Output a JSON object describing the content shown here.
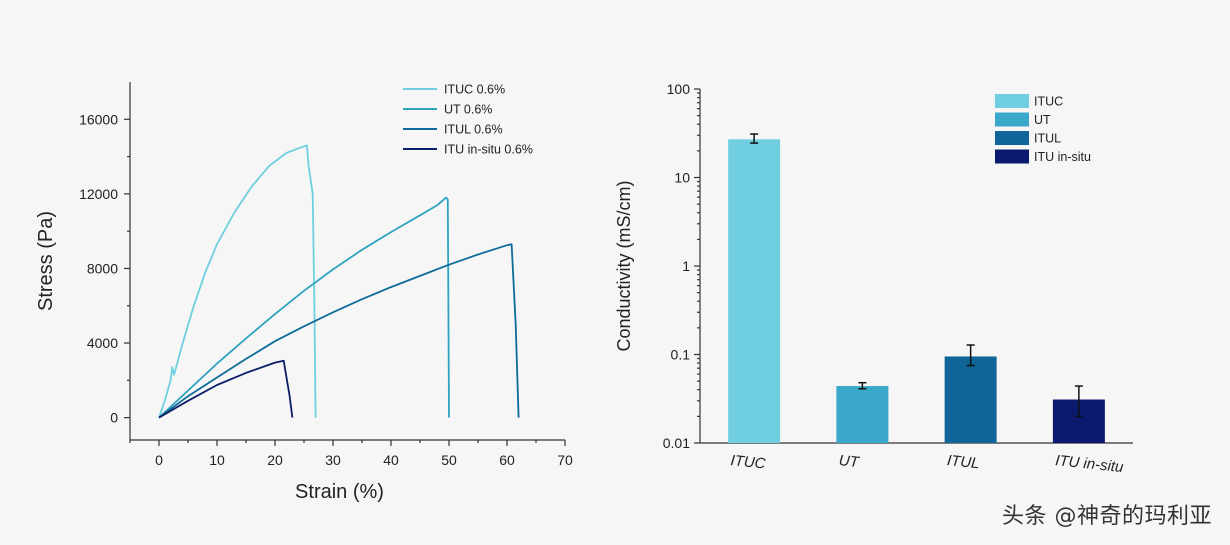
{
  "chart_data": [
    {
      "type": "line",
      "xlabel": "Strain (%)",
      "ylabel": "Stress (Pa)",
      "xlim": [
        -5,
        70
      ],
      "ylim": [
        -1200,
        18000
      ],
      "xticks": [
        0,
        10,
        20,
        30,
        40,
        50,
        60,
        70
      ],
      "yticks": [
        0,
        4000,
        8000,
        12000,
        16000
      ],
      "legend_position": "top-right",
      "series": [
        {
          "name": "ITUC 0.6%",
          "color": "#6fcfe0",
          "x": [
            0,
            1,
            2,
            2.3,
            2.6,
            4,
            6,
            8,
            10,
            13,
            16,
            19,
            22,
            24.5,
            25.5,
            25.8,
            26.5,
            26.8,
            27
          ],
          "y": [
            0,
            900,
            2000,
            2700,
            2300,
            3900,
            6000,
            7800,
            9300,
            11000,
            12400,
            13500,
            14200,
            14500,
            14600,
            13500,
            12000,
            6000,
            0
          ]
        },
        {
          "name": "UT 0.6%",
          "color": "#2ea3bf",
          "x": [
            0,
            5,
            10,
            15,
            20,
            25,
            30,
            35,
            40,
            45,
            48,
            49.5,
            49.8,
            50
          ],
          "y": [
            0,
            1450,
            2900,
            4250,
            5550,
            6800,
            7950,
            9000,
            9950,
            10850,
            11400,
            11800,
            11700,
            0
          ]
        },
        {
          "name": "ITUL 0.6%",
          "color": "#0e6c99",
          "x": [
            0,
            5,
            10,
            15,
            20,
            25,
            30,
            35,
            40,
            45,
            50,
            55,
            60,
            60.8,
            61.5,
            62
          ],
          "y": [
            0,
            1150,
            2150,
            3150,
            4100,
            4900,
            5650,
            6350,
            7000,
            7600,
            8200,
            8750,
            9250,
            9300,
            5000,
            0
          ]
        },
        {
          "name": "ITU in-situ 0.6%",
          "color": "#0b1d66",
          "x": [
            0,
            5,
            10,
            15,
            20,
            21.5,
            22.5,
            23
          ],
          "y": [
            0,
            900,
            1750,
            2400,
            2950,
            3050,
            1200,
            0
          ]
        }
      ]
    },
    {
      "type": "bar",
      "ylabel": "Conductivity (mS/cm)",
      "yscale": "log",
      "ylim": [
        0.01,
        100
      ],
      "yticks": [
        0.01,
        0.1,
        1,
        10,
        100
      ],
      "ytick_labels": [
        "0.01",
        "0.1",
        "1",
        "10",
        "100"
      ],
      "categories": [
        "ITUC",
        "UT",
        "ITUL",
        "ITU in-situ"
      ],
      "values": [
        27,
        0.044,
        0.095,
        0.031
      ],
      "error_low": [
        24.5,
        0.041,
        0.075,
        0.02
      ],
      "error_high": [
        31,
        0.048,
        0.128,
        0.044
      ],
      "colors": [
        "#6fcfe0",
        "#3aa8c9",
        "#0f6598",
        "#0b1a6e"
      ],
      "legend": [
        "ITUC",
        "UT",
        "ITUL",
        "ITU in-situ"
      ],
      "legend_position": "top-right"
    }
  ],
  "watermark": "头条 @神奇的玛利亚"
}
